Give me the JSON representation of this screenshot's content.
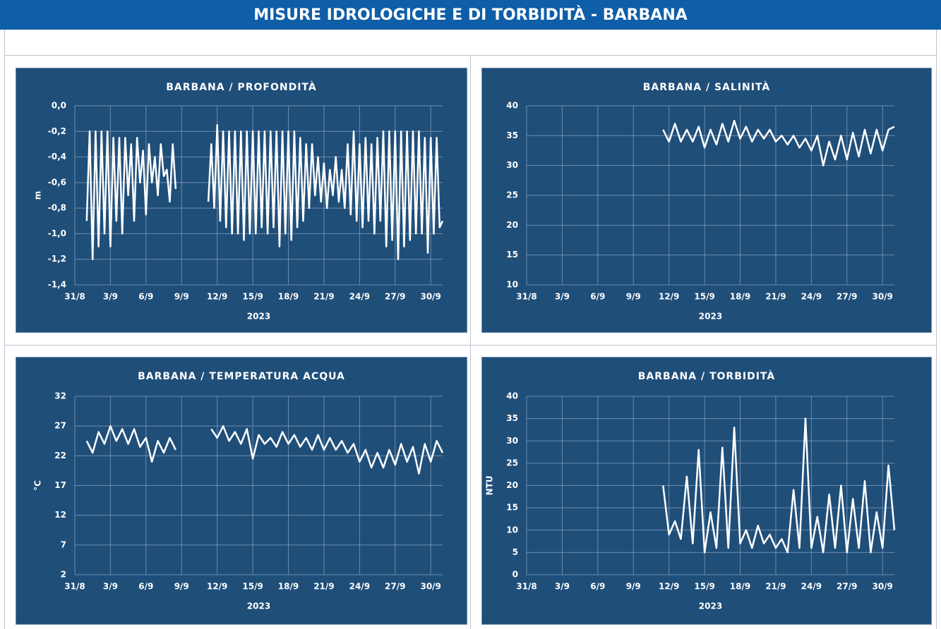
{
  "title": "MISURE IDROLOGICHE E DI TORBIDITÀ - BARBANA",
  "chart_data": [
    {
      "type": "line",
      "title": "BARBANA / PROFONDITÀ",
      "x_label": "2023",
      "y_label": "m",
      "grid": true,
      "color": "#ffffff",
      "xlim": [
        "2023-08-31",
        "2023-10-01"
      ],
      "xticks": [
        {
          "value": "2023-08-31",
          "label": "31/8"
        },
        {
          "value": "2023-09-03",
          "label": "3/9"
        },
        {
          "value": "2023-09-06",
          "label": "6/9"
        },
        {
          "value": "2023-09-09",
          "label": "9/9"
        },
        {
          "value": "2023-09-12",
          "label": "12/9"
        },
        {
          "value": "2023-09-15",
          "label": "15/9"
        },
        {
          "value": "2023-09-18",
          "label": "18/9"
        },
        {
          "value": "2023-09-21",
          "label": "21/9"
        },
        {
          "value": "2023-09-24",
          "label": "24/9"
        },
        {
          "value": "2023-09-27",
          "label": "27/9"
        },
        {
          "value": "2023-09-30",
          "label": "30/9"
        }
      ],
      "ylim": [
        -1.4,
        0
      ],
      "yticks": [
        {
          "value": 0,
          "label": "0,0"
        },
        {
          "value": -0.2,
          "label": "-0,2"
        },
        {
          "value": -0.4,
          "label": "-0,4"
        },
        {
          "value": -0.6,
          "label": "-0,6"
        },
        {
          "value": -0.8,
          "label": "-0,8"
        },
        {
          "value": -1.0,
          "label": "-1,0"
        },
        {
          "value": -1.2,
          "label": "-1,2"
        },
        {
          "value": -1.4,
          "label": "-1,4"
        }
      ],
      "x": [
        "2023-09-01T00:00",
        "2023-09-01T06:00",
        "2023-09-01T12:00",
        "2023-09-01T18:00",
        "2023-09-02T00:00",
        "2023-09-02T06:00",
        "2023-09-02T12:00",
        "2023-09-02T18:00",
        "2023-09-03T00:00",
        "2023-09-03T06:00",
        "2023-09-03T12:00",
        "2023-09-03T18:00",
        "2023-09-04T00:00",
        "2023-09-04T06:00",
        "2023-09-04T12:00",
        "2023-09-04T18:00",
        "2023-09-05T00:00",
        "2023-09-05T06:00",
        "2023-09-05T12:00",
        "2023-09-05T18:00",
        "2023-09-06T00:00",
        "2023-09-06T06:00",
        "2023-09-06T12:00",
        "2023-09-06T18:00",
        "2023-09-07T00:00",
        "2023-09-07T06:00",
        "2023-09-07T12:00",
        "2023-09-07T18:00",
        "2023-09-08T00:00",
        "2023-09-08T06:00",
        "2023-09-08T12:00",
        "2023-09-08T18:00",
        "2023-09-09T00:00",
        "2023-09-09T06:00",
        "2023-09-09T12:00",
        "2023-09-09T18:00",
        "2023-09-10T00:00",
        "2023-09-10T06:00",
        "2023-09-10T12:00",
        "2023-09-10T18:00",
        "2023-09-11T00:00",
        "2023-09-11T06:00",
        "2023-09-11T12:00",
        "2023-09-11T18:00",
        "2023-09-12T00:00",
        "2023-09-12T06:00",
        "2023-09-12T12:00",
        "2023-09-12T18:00",
        "2023-09-13T00:00",
        "2023-09-13T06:00",
        "2023-09-13T12:00",
        "2023-09-13T18:00",
        "2023-09-14T00:00",
        "2023-09-14T06:00",
        "2023-09-14T12:00",
        "2023-09-14T18:00",
        "2023-09-15T00:00",
        "2023-09-15T06:00",
        "2023-09-15T12:00",
        "2023-09-15T18:00",
        "2023-09-16T00:00",
        "2023-09-16T06:00",
        "2023-09-16T12:00",
        "2023-09-16T18:00",
        "2023-09-17T00:00",
        "2023-09-17T06:00",
        "2023-09-17T12:00",
        "2023-09-17T18:00",
        "2023-09-18T00:00",
        "2023-09-18T06:00",
        "2023-09-18T12:00",
        "2023-09-18T18:00",
        "2023-09-19T00:00",
        "2023-09-19T06:00",
        "2023-09-19T12:00",
        "2023-09-19T18:00",
        "2023-09-20T00:00",
        "2023-09-20T06:00",
        "2023-09-20T12:00",
        "2023-09-20T18:00",
        "2023-09-21T00:00",
        "2023-09-21T06:00",
        "2023-09-21T12:00",
        "2023-09-21T18:00",
        "2023-09-22T00:00",
        "2023-09-22T06:00",
        "2023-09-22T12:00",
        "2023-09-22T18:00",
        "2023-09-23T00:00",
        "2023-09-23T06:00",
        "2023-09-23T12:00",
        "2023-09-23T18:00",
        "2023-09-24T00:00",
        "2023-09-24T06:00",
        "2023-09-24T12:00",
        "2023-09-24T18:00",
        "2023-09-25T00:00",
        "2023-09-25T06:00",
        "2023-09-25T12:00",
        "2023-09-25T18:00",
        "2023-09-26T00:00",
        "2023-09-26T06:00",
        "2023-09-26T12:00",
        "2023-09-26T18:00",
        "2023-09-27T00:00",
        "2023-09-27T06:00",
        "2023-09-27T12:00",
        "2023-09-27T18:00",
        "2023-09-28T00:00",
        "2023-09-28T06:00",
        "2023-09-28T12:00",
        "2023-09-28T18:00",
        "2023-09-29T00:00",
        "2023-09-29T06:00",
        "2023-09-29T12:00",
        "2023-09-29T18:00",
        "2023-09-30T00:00",
        "2023-09-30T06:00",
        "2023-09-30T12:00",
        "2023-09-30T18:00",
        "2023-10-01T00:00"
      ],
      "values": [
        -0.9,
        -0.2,
        -1.2,
        -0.2,
        -1.1,
        -0.2,
        -1.0,
        -0.2,
        -1.1,
        -0.25,
        -0.9,
        -0.25,
        -1.0,
        -0.25,
        -0.7,
        -0.3,
        -0.9,
        -0.25,
        -0.6,
        -0.35,
        -0.85,
        -0.3,
        -0.6,
        -0.4,
        -0.7,
        -0.3,
        -0.55,
        -0.5,
        -0.75,
        -0.3,
        -0.65,
        null,
        null,
        null,
        null,
        null,
        null,
        null,
        null,
        null,
        null,
        -0.75,
        -0.3,
        -0.8,
        -0.15,
        -0.9,
        -0.2,
        -0.95,
        -0.2,
        -1.0,
        -0.2,
        -1.0,
        -0.2,
        -1.05,
        -0.2,
        -1.0,
        -0.2,
        -1.0,
        -0.2,
        -0.95,
        -0.2,
        -1.0,
        -0.2,
        -0.95,
        -0.2,
        -1.1,
        -0.2,
        -1.0,
        -0.2,
        -1.05,
        -0.2,
        -0.95,
        -0.25,
        -0.9,
        -0.3,
        -0.8,
        -0.3,
        -0.7,
        -0.4,
        -0.75,
        -0.45,
        -0.8,
        -0.5,
        -0.7,
        -0.4,
        -0.75,
        -0.5,
        -0.8,
        -0.3,
        -0.85,
        -0.2,
        -0.9,
        -0.3,
        -0.95,
        -0.25,
        -0.9,
        -0.3,
        -1.0,
        -0.25,
        -0.9,
        -0.2,
        -1.1,
        -0.2,
        -1.05,
        -0.2,
        -1.2,
        -0.2,
        -1.1,
        -0.2,
        -1.05,
        -0.2,
        -1.0,
        -0.2,
        -1.0,
        -0.25,
        -1.15,
        -0.25,
        -1.0,
        -0.25,
        -0.95,
        -0.9
      ]
    },
    {
      "type": "line",
      "title": "BARBANA / SALINITÀ",
      "x_label": "2023",
      "grid": true,
      "color": "#ffffff",
      "xlim": [
        "2023-08-31",
        "2023-10-01"
      ],
      "xticks": [
        {
          "value": "2023-08-31",
          "label": "31/8"
        },
        {
          "value": "2023-09-03",
          "label": "3/9"
        },
        {
          "value": "2023-09-06",
          "label": "6/9"
        },
        {
          "value": "2023-09-09",
          "label": "9/9"
        },
        {
          "value": "2023-09-12",
          "label": "12/9"
        },
        {
          "value": "2023-09-15",
          "label": "15/9"
        },
        {
          "value": "2023-09-18",
          "label": "18/9"
        },
        {
          "value": "2023-09-21",
          "label": "21/9"
        },
        {
          "value": "2023-09-24",
          "label": "24/9"
        },
        {
          "value": "2023-09-27",
          "label": "27/9"
        },
        {
          "value": "2023-09-30",
          "label": "30/9"
        }
      ],
      "ylim": [
        10,
        40
      ],
      "yticks": [
        10,
        15,
        20,
        25,
        30,
        35,
        40
      ],
      "x": [
        "2023-09-11T12:00",
        "2023-09-12T00:00",
        "2023-09-12T12:00",
        "2023-09-13T00:00",
        "2023-09-13T12:00",
        "2023-09-14T00:00",
        "2023-09-14T12:00",
        "2023-09-15T00:00",
        "2023-09-15T12:00",
        "2023-09-16T00:00",
        "2023-09-16T12:00",
        "2023-09-17T00:00",
        "2023-09-17T12:00",
        "2023-09-18T00:00",
        "2023-09-18T12:00",
        "2023-09-19T00:00",
        "2023-09-19T12:00",
        "2023-09-20T00:00",
        "2023-09-20T12:00",
        "2023-09-21T00:00",
        "2023-09-21T12:00",
        "2023-09-22T00:00",
        "2023-09-22T12:00",
        "2023-09-23T00:00",
        "2023-09-23T12:00",
        "2023-09-24T00:00",
        "2023-09-24T12:00",
        "2023-09-25T00:00",
        "2023-09-25T12:00",
        "2023-09-26T00:00",
        "2023-09-26T12:00",
        "2023-09-27T00:00",
        "2023-09-27T12:00",
        "2023-09-28T00:00",
        "2023-09-28T12:00",
        "2023-09-29T00:00",
        "2023-09-29T12:00",
        "2023-09-30T00:00",
        "2023-09-30T12:00",
        "2023-10-01T00:00"
      ],
      "values": [
        36,
        34,
        37,
        34,
        36,
        34,
        36.5,
        33,
        36,
        33.5,
        37,
        34,
        37.5,
        34.5,
        36.5,
        34,
        36,
        34.5,
        36,
        34,
        35,
        33.5,
        35,
        33,
        34.5,
        32.5,
        35,
        30,
        34,
        31,
        35,
        31,
        35.5,
        31.5,
        36,
        32,
        36,
        32.5,
        36,
        36.5
      ]
    },
    {
      "type": "line",
      "title": "BARBANA / TEMPERATURA ACQUA",
      "x_label": "2023",
      "y_label": "°C",
      "grid": true,
      "color": "#ffffff",
      "xlim": [
        "2023-08-31",
        "2023-10-01"
      ],
      "xticks": [
        {
          "value": "2023-08-31",
          "label": "31/8"
        },
        {
          "value": "2023-09-03",
          "label": "3/9"
        },
        {
          "value": "2023-09-06",
          "label": "6/9"
        },
        {
          "value": "2023-09-09",
          "label": "9/9"
        },
        {
          "value": "2023-09-12",
          "label": "12/9"
        },
        {
          "value": "2023-09-15",
          "label": "15/9"
        },
        {
          "value": "2023-09-18",
          "label": "18/9"
        },
        {
          "value": "2023-09-21",
          "label": "21/9"
        },
        {
          "value": "2023-09-24",
          "label": "24/9"
        },
        {
          "value": "2023-09-27",
          "label": "27/9"
        },
        {
          "value": "2023-09-30",
          "label": "30/9"
        }
      ],
      "ylim": [
        2,
        32
      ],
      "yticks": [
        2,
        7,
        12,
        17,
        22,
        27,
        32
      ],
      "x": [
        "2023-09-01T00:00",
        "2023-09-01T12:00",
        "2023-09-02T00:00",
        "2023-09-02T12:00",
        "2023-09-03T00:00",
        "2023-09-03T12:00",
        "2023-09-04T00:00",
        "2023-09-04T12:00",
        "2023-09-05T00:00",
        "2023-09-05T12:00",
        "2023-09-06T00:00",
        "2023-09-06T12:00",
        "2023-09-07T00:00",
        "2023-09-07T12:00",
        "2023-09-08T00:00",
        "2023-09-08T12:00",
        "2023-09-09T00:00",
        "2023-09-09T12:00",
        "2023-09-10T00:00",
        "2023-09-10T12:00",
        "2023-09-11T00:00",
        "2023-09-11T12:00",
        "2023-09-12T00:00",
        "2023-09-12T12:00",
        "2023-09-13T00:00",
        "2023-09-13T12:00",
        "2023-09-14T00:00",
        "2023-09-14T12:00",
        "2023-09-15T00:00",
        "2023-09-15T12:00",
        "2023-09-16T00:00",
        "2023-09-16T12:00",
        "2023-09-17T00:00",
        "2023-09-17T12:00",
        "2023-09-18T00:00",
        "2023-09-18T12:00",
        "2023-09-19T00:00",
        "2023-09-19T12:00",
        "2023-09-20T00:00",
        "2023-09-20T12:00",
        "2023-09-21T00:00",
        "2023-09-21T12:00",
        "2023-09-22T00:00",
        "2023-09-22T12:00",
        "2023-09-23T00:00",
        "2023-09-23T12:00",
        "2023-09-24T00:00",
        "2023-09-24T12:00",
        "2023-09-25T00:00",
        "2023-09-25T12:00",
        "2023-09-26T00:00",
        "2023-09-26T12:00",
        "2023-09-27T00:00",
        "2023-09-27T12:00",
        "2023-09-28T00:00",
        "2023-09-28T12:00",
        "2023-09-29T00:00",
        "2023-09-29T12:00",
        "2023-09-30T00:00",
        "2023-09-30T12:00",
        "2023-10-01T00:00"
      ],
      "values": [
        24.5,
        22.5,
        26,
        24,
        27,
        24.5,
        26.5,
        24,
        26.5,
        23.5,
        25,
        21,
        24.5,
        22.5,
        25,
        23,
        null,
        null,
        null,
        null,
        null,
        26.5,
        25,
        27,
        24.5,
        26,
        24,
        26.5,
        21.5,
        25.5,
        24,
        25,
        23.5,
        26,
        24,
        25.5,
        23.5,
        25,
        23,
        25.5,
        23,
        25,
        23,
        24.5,
        22.5,
        24,
        21,
        23,
        20,
        22.5,
        20,
        23,
        20.5,
        24,
        21,
        23.5,
        19,
        24,
        21,
        24.5,
        22.5
      ]
    },
    {
      "type": "line",
      "title": "BARBANA / TORBIDITÀ",
      "x_label": "2023",
      "y_label": "NTU",
      "grid": true,
      "color": "#ffffff",
      "xlim": [
        "2023-08-31",
        "2023-10-01"
      ],
      "xticks": [
        {
          "value": "2023-08-31",
          "label": "31/8"
        },
        {
          "value": "2023-09-03",
          "label": "3/9"
        },
        {
          "value": "2023-09-06",
          "label": "6/9"
        },
        {
          "value": "2023-09-09",
          "label": "9/9"
        },
        {
          "value": "2023-09-12",
          "label": "12/9"
        },
        {
          "value": "2023-09-15",
          "label": "15/9"
        },
        {
          "value": "2023-09-18",
          "label": "18/9"
        },
        {
          "value": "2023-09-21",
          "label": "21/9"
        },
        {
          "value": "2023-09-24",
          "label": "24/9"
        },
        {
          "value": "2023-09-27",
          "label": "27/9"
        },
        {
          "value": "2023-09-30",
          "label": "30/9"
        }
      ],
      "ylim": [
        0,
        40
      ],
      "yticks": [
        0,
        5,
        10,
        15,
        20,
        25,
        30,
        35,
        40
      ],
      "x": [
        "2023-09-11T12:00",
        "2023-09-12T00:00",
        "2023-09-12T12:00",
        "2023-09-13T00:00",
        "2023-09-13T12:00",
        "2023-09-14T00:00",
        "2023-09-14T12:00",
        "2023-09-15T00:00",
        "2023-09-15T12:00",
        "2023-09-16T00:00",
        "2023-09-16T12:00",
        "2023-09-17T00:00",
        "2023-09-17T12:00",
        "2023-09-18T00:00",
        "2023-09-18T12:00",
        "2023-09-19T00:00",
        "2023-09-19T12:00",
        "2023-09-20T00:00",
        "2023-09-20T12:00",
        "2023-09-21T00:00",
        "2023-09-21T12:00",
        "2023-09-22T00:00",
        "2023-09-22T12:00",
        "2023-09-23T00:00",
        "2023-09-23T12:00",
        "2023-09-24T00:00",
        "2023-09-24T12:00",
        "2023-09-25T00:00",
        "2023-09-25T12:00",
        "2023-09-26T00:00",
        "2023-09-26T12:00",
        "2023-09-27T00:00",
        "2023-09-27T12:00",
        "2023-09-28T00:00",
        "2023-09-28T12:00",
        "2023-09-29T00:00",
        "2023-09-29T12:00",
        "2023-09-30T00:00",
        "2023-09-30T12:00",
        "2023-10-01T00:00"
      ],
      "values": [
        20,
        9,
        12,
        8,
        22,
        7,
        28,
        5,
        14,
        6,
        28.5,
        6,
        33,
        7,
        10,
        6,
        11,
        7,
        9,
        6,
        8,
        5,
        19,
        6,
        35,
        6,
        13,
        5,
        18,
        6,
        20,
        5,
        17,
        6,
        21,
        5,
        14,
        6,
        24.5,
        10
      ]
    }
  ]
}
